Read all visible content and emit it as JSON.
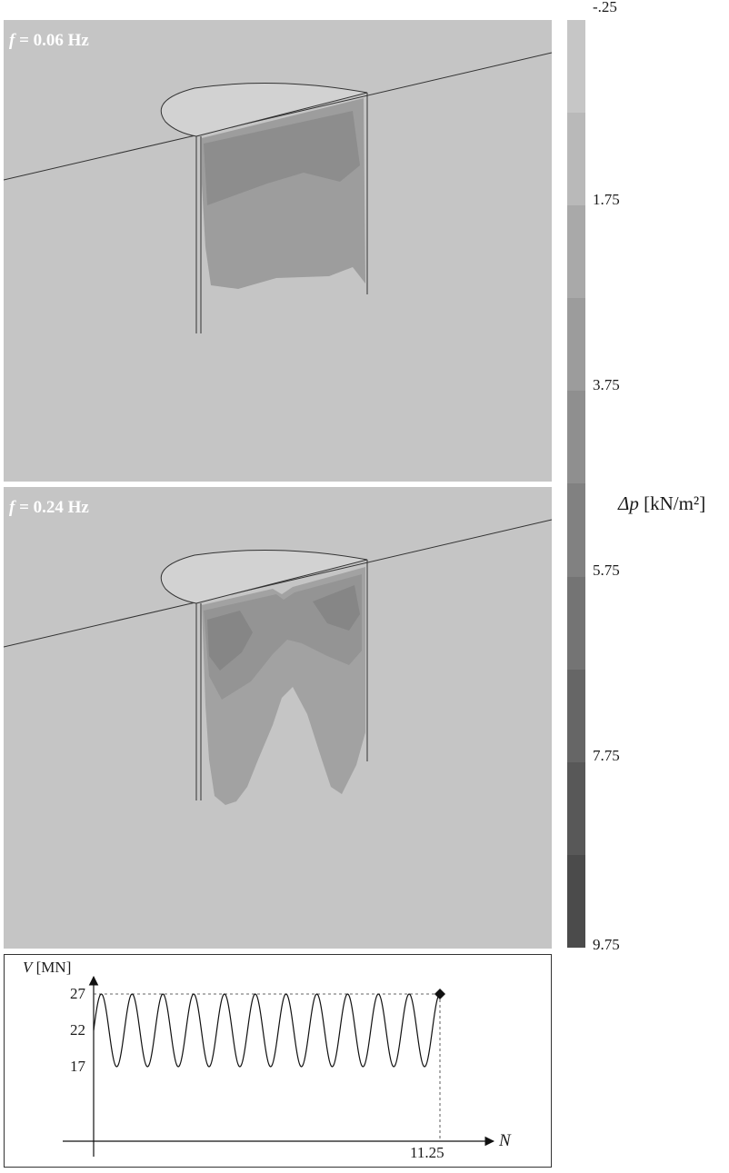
{
  "panels": [
    {
      "freq_var": "f",
      "freq_value": " = 0.06 Hz"
    },
    {
      "freq_var": "f",
      "freq_value": " = 0.24 Hz"
    }
  ],
  "legend": {
    "symbol": "Δp",
    "unit": " [kN/m²]",
    "ticks": [
      "-.25",
      "1.75",
      "3.75",
      "5.75",
      "7.75",
      "9.75"
    ],
    "band_colors": [
      "#c6c6c6",
      "#b9b9b9",
      "#a9a9a9",
      "#9c9c9c",
      "#8f8f8f",
      "#818181",
      "#747474",
      "#666666",
      "#585858",
      "#4b4b4b"
    ]
  },
  "graph": {
    "y_var": "V",
    "y_unit": " [MN]",
    "x_var": "N",
    "y_ticks": [
      "27",
      "22",
      "17"
    ],
    "x_tick": "11.25",
    "wave": {
      "mean": 22,
      "amplitude": 5,
      "cycles": 11.25,
      "end_value": 27
    }
  }
}
